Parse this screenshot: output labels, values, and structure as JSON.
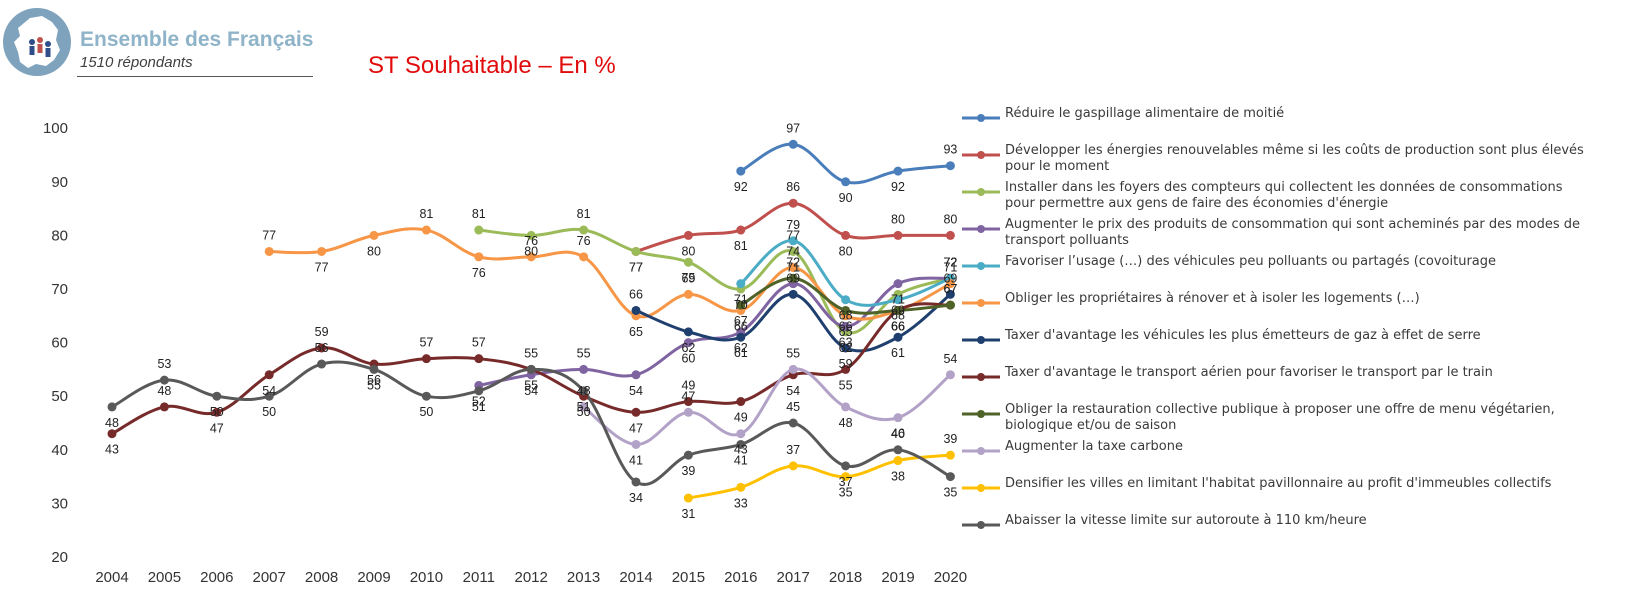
{
  "header": {
    "title": "Ensemble des Français",
    "subtitle": "1510 répondants",
    "logo_icon": "france-map-people-icon"
  },
  "chart_data": {
    "type": "line",
    "title": "ST Souhaitable – En %",
    "xlabel": "",
    "ylabel": "",
    "ylim": [
      20,
      100
    ],
    "yticks": [
      20,
      30,
      40,
      50,
      60,
      70,
      80,
      90,
      100
    ],
    "x": [
      2004,
      2005,
      2006,
      2007,
      2008,
      2009,
      2010,
      2011,
      2012,
      2013,
      2014,
      2015,
      2016,
      2017,
      2018,
      2019,
      2020
    ],
    "legend_position": "right",
    "grid": false,
    "series": [
      {
        "name": "Réduire le gaspillage alimentaire de moitié",
        "color": "#4a7ebb",
        "values": [
          null,
          null,
          null,
          null,
          null,
          null,
          null,
          null,
          null,
          null,
          null,
          null,
          92,
          97,
          90,
          92,
          93
        ]
      },
      {
        "name": "Développer les énergies renouvelables même si les coûts de production sont plus élevés pour le moment",
        "color": "#c0504d",
        "values": [
          null,
          null,
          null,
          null,
          null,
          null,
          null,
          null,
          null,
          null,
          77,
          80,
          81,
          86,
          80,
          80,
          80
        ]
      },
      {
        "name": "Installer dans les foyers des compteurs qui collectent les données de consommations pour permettre aux gens de faire des économies d'énergie",
        "color": "#9bbb59",
        "values": [
          null,
          null,
          null,
          null,
          null,
          null,
          null,
          81,
          80,
          81,
          77,
          75,
          70,
          77,
          62,
          69,
          72
        ]
      },
      {
        "name": "Augmenter le prix des produits de consommation qui sont acheminés par des modes de transport polluants",
        "color": "#8064a2",
        "values": [
          null,
          null,
          null,
          null,
          null,
          null,
          null,
          52,
          54,
          55,
          54,
          60,
          62,
          71,
          63,
          71,
          72
        ]
      },
      {
        "name": "Favoriser l’usage (…) des véhicules peu polluants  ou partagés (covoiturage",
        "color": "#4bacc6",
        "values": [
          null,
          null,
          null,
          null,
          null,
          null,
          null,
          null,
          null,
          null,
          null,
          null,
          71,
          79,
          68,
          68,
          72
        ]
      },
      {
        "name": "Obliger les propriétaires à rénover et à isoler les logements (…)",
        "color": "#f79646",
        "values": [
          null,
          null,
          null,
          77,
          77,
          80,
          81,
          76,
          76,
          76,
          65,
          69,
          66,
          74,
          65,
          66,
          71
        ]
      },
      {
        "name": "Taxer d'avantage les véhicules les plus émetteurs de gaz à effet de serre",
        "color": "#1f3f6e",
        "values": [
          null,
          null,
          null,
          null,
          null,
          null,
          null,
          null,
          null,
          null,
          66,
          62,
          61,
          69,
          59,
          61,
          69
        ]
      },
      {
        "name": "Taxer d'avantage le transport aérien pour favoriser le transport par le train",
        "color": "#772a2a",
        "values": [
          43,
          48,
          47,
          54,
          59,
          56,
          57,
          57,
          55,
          50,
          47,
          49,
          49,
          54,
          55,
          66,
          67
        ]
      },
      {
        "name": " Obliger la restauration collective publique à proposer une offre de menu végétarien, biologique et/ou de saison",
        "color": "#4f6228",
        "values": [
          null,
          null,
          null,
          null,
          null,
          null,
          null,
          null,
          null,
          null,
          null,
          null,
          67,
          72,
          66,
          66,
          67
        ]
      },
      {
        "name": "Augmenter la taxe carbone",
        "color": "#b3a2c7",
        "values": [
          null,
          null,
          null,
          null,
          null,
          null,
          null,
          null,
          null,
          48,
          41,
          47,
          43,
          55,
          48,
          46,
          54
        ]
      },
      {
        "name": "Densifier les villes en limitant l'habitat pavillonnaire au profit d'immeubles collectifs",
        "color": "#ffc000",
        "values": [
          null,
          null,
          null,
          null,
          null,
          null,
          null,
          null,
          null,
          null,
          null,
          31,
          33,
          37,
          35,
          38,
          39
        ]
      },
      {
        "name": "Abaisser la vitesse limite sur autoroute à 110 km/heure",
        "color": "#595959",
        "values": [
          48,
          53,
          50,
          50,
          56,
          55,
          50,
          51,
          55,
          51,
          34,
          39,
          41,
          45,
          37,
          40,
          35
        ]
      }
    ]
  }
}
